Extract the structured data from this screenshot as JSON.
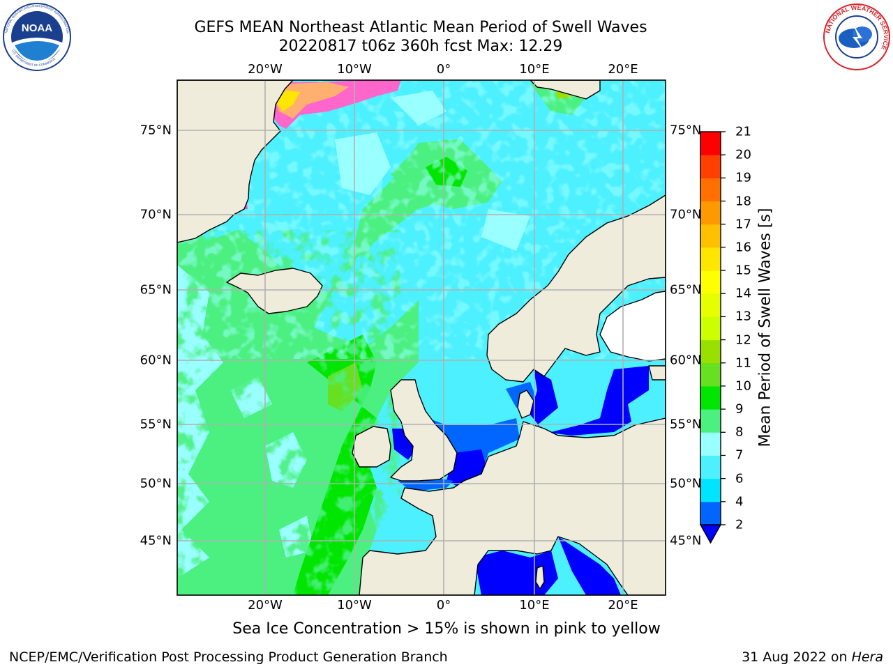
{
  "title_line1": "GEFS MEAN Northeast Atlantic Mean Period of Swell Waves",
  "title_line2": "20220817 t06z 360h fcst   Max: 12.29",
  "lon_ticks": [
    "20°W",
    "10°W",
    "0°",
    "10°E",
    "20°E"
  ],
  "lat_ticks": [
    "75°N",
    "70°N",
    "65°N",
    "60°N",
    "55°N",
    "50°N",
    "45°N"
  ],
  "colorbar": {
    "title": "Mean Period of Swell Waves [s]",
    "labels": [
      "2",
      "4",
      "6",
      "7",
      "8",
      "9",
      "10",
      "11",
      "12",
      "13",
      "14",
      "15",
      "16",
      "17",
      "18",
      "19",
      "20",
      "21"
    ],
    "colors": [
      "#0066ff",
      "#00e5ff",
      "#4df0ff",
      "#99ffff",
      "#4cf080",
      "#00e600",
      "#66e020",
      "#99e000",
      "#ccff00",
      "#e6ff00",
      "#ffff00",
      "#ffe600",
      "#ffc000",
      "#ff9900",
      "#ff7000",
      "#ff4000",
      "#ff0000"
    ],
    "extend_color": "#0000ff"
  },
  "sea_ice_note": "Sea Ice Concentration > 15% is shown in pink to yellow",
  "footer": {
    "left": "NCEP/EMC/Verification Post Processing Product Generation Branch",
    "right_date": "31 Aug 2022 on ",
    "right_host": "Hera"
  },
  "logos": {
    "noaa_text": "NOAA",
    "noaa_ring": "NATIONAL OCEANIC AND ATMOSPHERIC ADMINISTRATION",
    "noaa_ring_bottom": "U.S. DEPARTMENT OF COMMERCE",
    "nws_ring": "NATIONAL WEATHER SERVICE"
  },
  "map_colors": {
    "land": "#efecdc",
    "ocean_base": "#4df0ff",
    "grid": "#b0b0b0"
  }
}
